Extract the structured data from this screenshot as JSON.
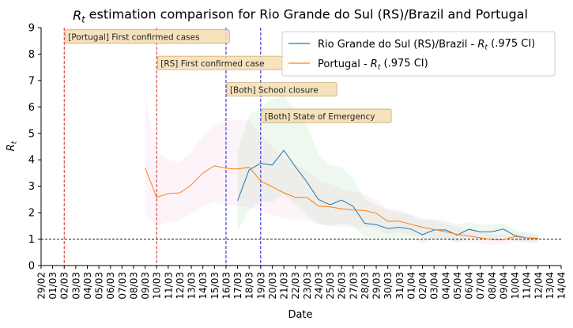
{
  "chart_data": {
    "type": "line",
    "title": "R_t estimation comparison for Rio Grande do Sul (RS)/Brazil and Portugal",
    "xlabel": "Date",
    "ylabel": "R_t",
    "ylim": [
      0,
      9
    ],
    "yticks": [
      0,
      1,
      2,
      3,
      4,
      5,
      6,
      7,
      8,
      9
    ],
    "grid": false,
    "legend_position": "top-right",
    "x_tick_labels": [
      "29/02",
      "01/03",
      "02/03",
      "03/03",
      "04/03",
      "05/03",
      "06/03",
      "07/03",
      "08/03",
      "09/03",
      "10/03",
      "11/03",
      "12/03",
      "13/03",
      "14/03",
      "15/03",
      "16/03",
      "17/03",
      "18/03",
      "19/03",
      "20/03",
      "21/03",
      "22/03",
      "23/03",
      "24/03",
      "25/03",
      "26/03",
      "27/03",
      "28/03",
      "29/03",
      "30/03",
      "31/03",
      "01/04",
      "02/04",
      "03/04",
      "04/04",
      "05/04",
      "06/04",
      "07/04",
      "08/04",
      "09/04",
      "10/04",
      "11/04",
      "12/04",
      "13/04",
      "14/04"
    ],
    "reference_line": {
      "y": 1,
      "style": "dashed",
      "color": "#000000"
    },
    "series": [
      {
        "name": "Rio Grande do Sul (RS)/Brazil - R_t (.975 CI)",
        "color": "#1f77b4",
        "band_fill": "#2ca02c",
        "x": [
          "17/03",
          "18/03",
          "19/03",
          "20/03",
          "21/03",
          "22/03",
          "23/03",
          "24/03",
          "25/03",
          "26/03",
          "27/03",
          "28/03",
          "29/03",
          "30/03",
          "31/03",
          "01/04",
          "02/04",
          "03/04",
          "04/04",
          "05/04",
          "06/04",
          "07/04",
          "08/04",
          "09/04",
          "10/04",
          "11/04",
          "12/04"
        ],
        "values": [
          2.45,
          3.62,
          3.87,
          3.8,
          4.36,
          3.74,
          3.16,
          2.5,
          2.3,
          2.48,
          2.24,
          1.6,
          1.55,
          1.4,
          1.45,
          1.38,
          1.17,
          1.35,
          1.35,
          1.15,
          1.37,
          1.28,
          1.28,
          1.38,
          1.13,
          1.05,
          1.03
        ],
        "upper": [
          4.3,
          5.7,
          6.0,
          6.3,
          6.4,
          5.9,
          5.3,
          4.2,
          3.8,
          3.7,
          3.3,
          2.5,
          2.3,
          2.1,
          2.0,
          1.9,
          1.7,
          1.75,
          1.7,
          1.55,
          1.65,
          1.55,
          1.55,
          1.6,
          1.35,
          1.25,
          1.2
        ],
        "lower": [
          1.3,
          2.1,
          2.4,
          2.4,
          2.7,
          2.3,
          1.9,
          1.6,
          1.5,
          1.6,
          1.5,
          1.1,
          1.05,
          1.0,
          1.05,
          1.0,
          0.85,
          1.0,
          1.0,
          0.85,
          1.05,
          0.98,
          1.0,
          1.1,
          0.92,
          0.88,
          0.88
        ]
      },
      {
        "name": "Portugal - R_t (.975 CI)",
        "color": "#ff7f0e",
        "band_fill": "#e377c2",
        "x": [
          "09/03",
          "10/03",
          "11/03",
          "12/03",
          "13/03",
          "14/03",
          "15/03",
          "16/03",
          "17/03",
          "18/03",
          "19/03",
          "20/03",
          "21/03",
          "22/03",
          "23/03",
          "24/03",
          "25/03",
          "26/03",
          "27/03",
          "28/03",
          "29/03",
          "30/03",
          "31/03",
          "01/04",
          "02/04",
          "03/04",
          "04/04",
          "05/04",
          "06/04",
          "07/04",
          "08/04",
          "09/04",
          "10/04",
          "11/04",
          "12/04"
        ],
        "values": [
          3.7,
          2.58,
          2.72,
          2.75,
          3.05,
          3.5,
          3.78,
          3.68,
          3.65,
          3.72,
          3.2,
          2.98,
          2.75,
          2.58,
          2.58,
          2.25,
          2.22,
          2.15,
          2.1,
          2.08,
          1.98,
          1.67,
          1.68,
          1.56,
          1.45,
          1.37,
          1.28,
          1.18,
          1.12,
          1.05,
          0.98,
          0.98,
          1.1,
          1.05,
          1.02
        ],
        "upper": [
          6.4,
          4.3,
          4.0,
          3.9,
          4.3,
          4.9,
          5.3,
          5.5,
          5.5,
          5.5,
          5.0,
          4.5,
          4.1,
          3.8,
          3.6,
          3.2,
          3.1,
          2.9,
          2.8,
          2.7,
          2.5,
          2.15,
          2.1,
          1.95,
          1.8,
          1.7,
          1.55,
          1.45,
          1.35,
          1.28,
          1.18,
          1.15,
          1.25,
          1.18,
          1.12
        ],
        "lower": [
          1.9,
          1.5,
          1.65,
          1.7,
          1.95,
          2.25,
          2.4,
          2.3,
          2.25,
          2.2,
          2.05,
          1.9,
          1.8,
          1.7,
          1.7,
          1.55,
          1.5,
          1.45,
          1.45,
          1.45,
          1.4,
          1.2,
          1.25,
          1.15,
          1.1,
          1.05,
          1.0,
          0.92,
          0.88,
          0.85,
          0.8,
          0.8,
          0.92,
          0.9,
          0.9
        ]
      }
    ],
    "events": [
      {
        "x": "02/03",
        "color": "#d62728",
        "label": "[Portugal] First confirmed cases",
        "label_y": 8.65
      },
      {
        "x": "10/03",
        "color": "#d62728",
        "label": "[RS] First confirmed case",
        "label_y": 7.65
      },
      {
        "x": "16/03",
        "color": "#1f1fd6",
        "label": "[Both] School closure",
        "label_y": 6.65
      },
      {
        "x": "19/03",
        "color": "#1f1fd6",
        "label": "[Both] State of Emergency",
        "label_y": 5.65
      }
    ],
    "annotation_style": {
      "fill": "#f5deb3",
      "stroke": "#c8a86a"
    }
  }
}
